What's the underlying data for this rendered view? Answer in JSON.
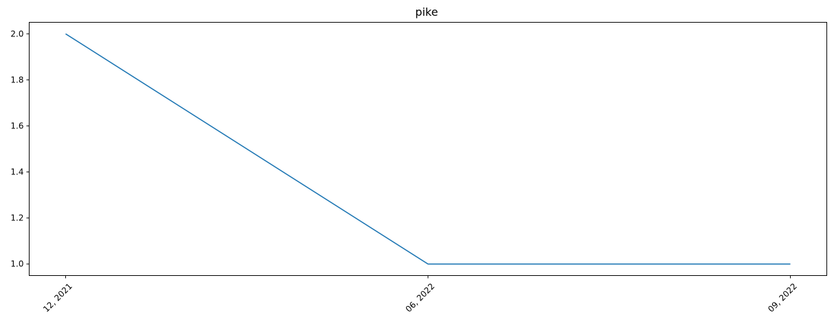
{
  "chart_data": {
    "type": "line",
    "title": "pike",
    "xlabel": "",
    "ylabel": "",
    "x": [
      "12, 2021",
      "06, 2022",
      "09, 2022"
    ],
    "series": [
      {
        "values": [
          2.0,
          1.0,
          1.0
        ],
        "color": "#1f77b4"
      }
    ],
    "yticks": [
      1.0,
      1.2,
      1.4,
      1.6,
      1.8,
      2.0
    ],
    "ytick_labels": [
      "1.0",
      "1.2",
      "1.4",
      "1.6",
      "1.8",
      "2.0"
    ],
    "ylim": [
      0.95,
      2.05
    ],
    "grid": false,
    "legend": "none"
  }
}
